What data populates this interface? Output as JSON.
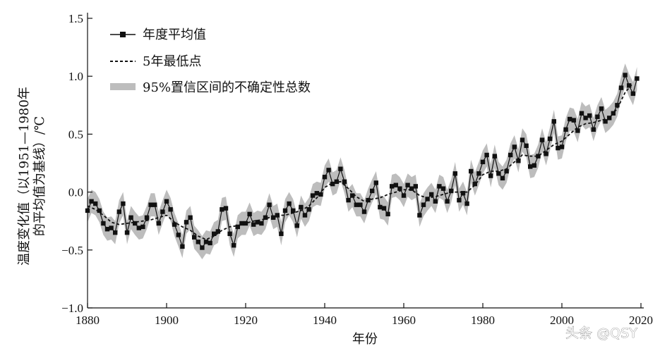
{
  "chart_data": {
    "type": "line",
    "xlabel": "年份",
    "ylabel_line1": "温度变化值（以1951—1980年",
    "ylabel_line2": "的平均值为基线）/℃",
    "xlim": [
      1880,
      2020
    ],
    "ylim": [
      -1.0,
      1.5
    ],
    "x_ticks": [
      1880,
      1900,
      1920,
      1940,
      1960,
      1980,
      2000,
      2020
    ],
    "y_ticks": [
      -1.0,
      -0.5,
      0.0,
      0.5,
      1.0,
      1.5
    ],
    "y_tick_labels": [
      "−1.0",
      "−0.5",
      "0.0",
      "0.5",
      "1.0",
      "1.5"
    ],
    "grid": false,
    "legend_position": "top-left",
    "legend": [
      {
        "label": "年度平均值",
        "style": "line-square-marker"
      },
      {
        "label": "5年最低点",
        "style": "dashed"
      },
      {
        "label": "95%置信区间的不确定性总数",
        "style": "gray-band"
      }
    ],
    "series": [
      {
        "name": "年度平均值",
        "x": [
          1880,
          1881,
          1882,
          1883,
          1884,
          1885,
          1886,
          1887,
          1888,
          1889,
          1890,
          1891,
          1892,
          1893,
          1894,
          1895,
          1896,
          1897,
          1898,
          1899,
          1900,
          1901,
          1902,
          1903,
          1904,
          1905,
          1906,
          1907,
          1908,
          1909,
          1910,
          1911,
          1912,
          1913,
          1914,
          1915,
          1916,
          1917,
          1918,
          1919,
          1920,
          1921,
          1922,
          1923,
          1924,
          1925,
          1926,
          1927,
          1928,
          1929,
          1930,
          1931,
          1932,
          1933,
          1934,
          1935,
          1936,
          1937,
          1938,
          1939,
          1940,
          1941,
          1942,
          1943,
          1944,
          1945,
          1946,
          1947,
          1948,
          1949,
          1950,
          1951,
          1952,
          1953,
          1954,
          1955,
          1956,
          1957,
          1958,
          1959,
          1960,
          1961,
          1962,
          1963,
          1964,
          1965,
          1966,
          1967,
          1968,
          1969,
          1970,
          1971,
          1972,
          1973,
          1974,
          1975,
          1976,
          1977,
          1978,
          1979,
          1980,
          1981,
          1982,
          1983,
          1984,
          1985,
          1986,
          1987,
          1988,
          1989,
          1990,
          1991,
          1992,
          1993,
          1994,
          1995,
          1996,
          1997,
          1998,
          1999,
          2000,
          2001,
          2002,
          2003,
          2004,
          2005,
          2006,
          2007,
          2008,
          2009,
          2010,
          2011,
          2012,
          2013,
          2014,
          2015,
          2016,
          2017,
          2018,
          2019
        ],
        "values": [
          -0.16,
          -0.08,
          -0.1,
          -0.16,
          -0.27,
          -0.32,
          -0.31,
          -0.35,
          -0.17,
          -0.1,
          -0.35,
          -0.22,
          -0.27,
          -0.31,
          -0.3,
          -0.22,
          -0.11,
          -0.11,
          -0.27,
          -0.17,
          -0.08,
          -0.15,
          -0.28,
          -0.37,
          -0.47,
          -0.26,
          -0.22,
          -0.39,
          -0.43,
          -0.48,
          -0.43,
          -0.44,
          -0.36,
          -0.34,
          -0.15,
          -0.14,
          -0.36,
          -0.46,
          -0.3,
          -0.27,
          -0.27,
          -0.19,
          -0.28,
          -0.26,
          -0.27,
          -0.22,
          -0.11,
          -0.22,
          -0.2,
          -0.36,
          -0.16,
          -0.1,
          -0.16,
          -0.29,
          -0.13,
          -0.2,
          -0.15,
          -0.03,
          -0.01,
          -0.02,
          0.13,
          0.19,
          0.07,
          0.09,
          0.2,
          0.09,
          -0.07,
          -0.03,
          -0.11,
          -0.11,
          -0.17,
          -0.07,
          0.01,
          0.08,
          -0.13,
          -0.14,
          -0.19,
          0.05,
          0.06,
          0.03,
          -0.03,
          0.06,
          0.03,
          0.05,
          -0.2,
          -0.11,
          -0.06,
          -0.02,
          -0.08,
          0.05,
          0.03,
          -0.08,
          0.01,
          0.16,
          -0.07,
          -0.01,
          -0.1,
          0.18,
          0.07,
          0.16,
          0.26,
          0.32,
          0.14,
          0.31,
          0.16,
          0.12,
          0.18,
          0.32,
          0.39,
          0.27,
          0.45,
          0.4,
          0.22,
          0.23,
          0.31,
          0.45,
          0.33,
          0.46,
          0.61,
          0.38,
          0.39,
          0.54,
          0.63,
          0.62,
          0.53,
          0.68,
          0.64,
          0.66,
          0.54,
          0.65,
          0.72,
          0.61,
          0.64,
          0.68,
          0.75,
          0.9,
          1.01,
          0.92,
          0.85,
          0.98
        ]
      },
      {
        "name": "5年最低点",
        "x": [
          1880,
          1882,
          1884,
          1886,
          1888,
          1890,
          1892,
          1894,
          1896,
          1898,
          1900,
          1902,
          1904,
          1906,
          1908,
          1910,
          1912,
          1914,
          1916,
          1918,
          1920,
          1922,
          1924,
          1926,
          1928,
          1930,
          1932,
          1934,
          1936,
          1938,
          1940,
          1942,
          1944,
          1946,
          1948,
          1950,
          1952,
          1954,
          1956,
          1958,
          1960,
          1962,
          1964,
          1966,
          1968,
          1970,
          1972,
          1974,
          1976,
          1978,
          1980,
          1982,
          1984,
          1986,
          1988,
          1990,
          1992,
          1994,
          1996,
          1998,
          2000,
          2002,
          2004,
          2006,
          2008,
          2010,
          2012,
          2014,
          2016,
          2018
        ],
        "values": [
          -0.12,
          -0.15,
          -0.2,
          -0.26,
          -0.28,
          -0.27,
          -0.26,
          -0.25,
          -0.24,
          -0.22,
          -0.2,
          -0.26,
          -0.3,
          -0.33,
          -0.38,
          -0.41,
          -0.38,
          -0.33,
          -0.3,
          -0.29,
          -0.27,
          -0.25,
          -0.24,
          -0.22,
          -0.2,
          -0.2,
          -0.18,
          -0.16,
          -0.12,
          -0.05,
          0.04,
          0.08,
          0.09,
          0.03,
          -0.04,
          -0.08,
          -0.06,
          -0.05,
          -0.02,
          0.0,
          0.02,
          0.02,
          -0.03,
          -0.05,
          -0.04,
          -0.02,
          0.0,
          0.0,
          0.0,
          0.06,
          0.15,
          0.18,
          0.18,
          0.2,
          0.26,
          0.32,
          0.31,
          0.31,
          0.36,
          0.41,
          0.44,
          0.5,
          0.56,
          0.59,
          0.6,
          0.62,
          0.64,
          0.72,
          0.86,
          0.94
        ]
      }
    ],
    "band_half_width": 0.1
  },
  "watermark": "头条 @QSY"
}
